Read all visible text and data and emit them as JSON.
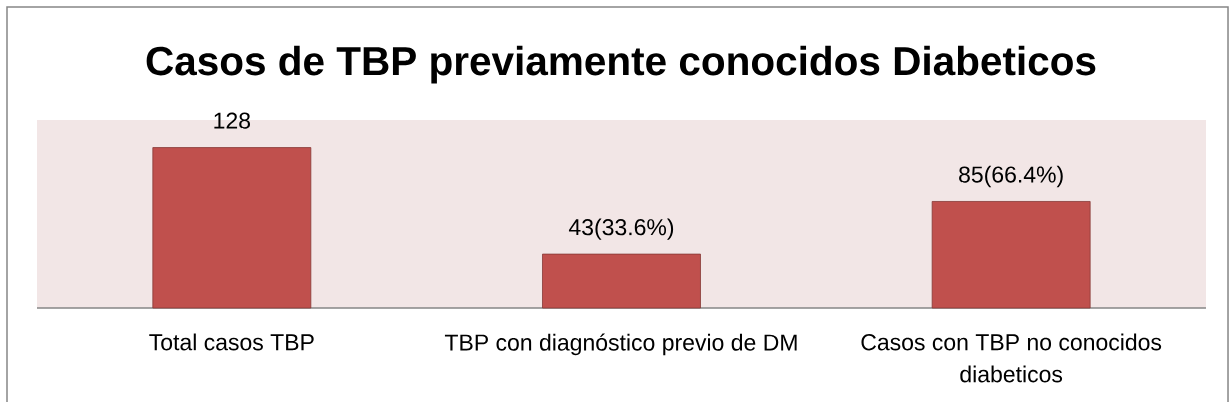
{
  "chart_data": {
    "type": "bar",
    "title": "Casos de TBP previamente conocidos Diabeticos",
    "categories": [
      "Total casos  TBP",
      "TBP con diagnóstico previo de DM",
      "Casos con TBP no conocidos diabeticos"
    ],
    "values": [
      128,
      43,
      85
    ],
    "color": "#c0504d",
    "value_labels": [
      "128",
      "43(33.6%)",
      "85(66.4%)"
    ],
    "ylim": [
      0,
      150
    ]
  }
}
